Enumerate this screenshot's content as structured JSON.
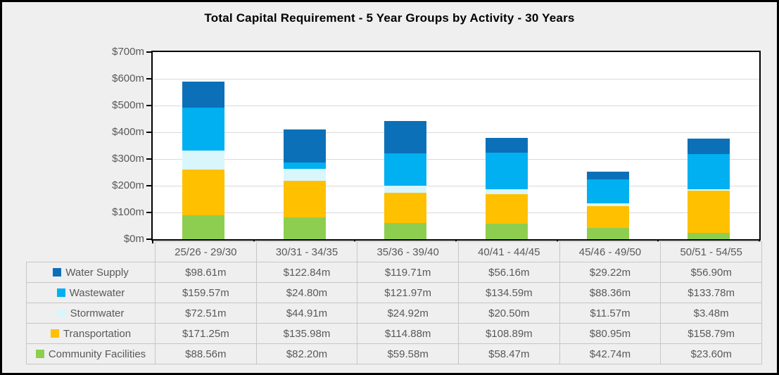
{
  "title": "Total Capital Requirement - 5 Year Groups by Activity - 30 Years",
  "colors": {
    "figure_background": "#efefef",
    "figure_border": "#000000",
    "plot_background": "#ffffff",
    "plot_border": "#000000",
    "gridline": "#d9d9d9",
    "axis_text": "#595959",
    "table_border": "#c6c6c6",
    "table_cell_background": "#efefef"
  },
  "chart_data": {
    "type": "bar",
    "stacked": true,
    "title": "Total Capital Requirement - 5 Year Groups by Activity - 30 Years",
    "categories": [
      "25/26 - 29/30",
      "30/31 - 34/35",
      "35/36 - 39/40",
      "40/41 - 44/45",
      "45/46 - 49/50",
      "50/51 - 54/55"
    ],
    "series": [
      {
        "name": "Water Supply",
        "color": "#0c70b8",
        "values": [
          98.61,
          122.84,
          119.71,
          56.16,
          29.22,
          56.9
        ]
      },
      {
        "name": "Wastewater",
        "color": "#00b0f0",
        "values": [
          159.57,
          24.8,
          121.97,
          134.59,
          88.36,
          133.78
        ]
      },
      {
        "name": "Stormwater",
        "color": "#d9f6fd",
        "values": [
          72.51,
          44.91,
          24.92,
          20.5,
          11.57,
          3.48
        ]
      },
      {
        "name": "Transportation",
        "color": "#ffc000",
        "values": [
          171.25,
          135.98,
          114.88,
          108.89,
          80.95,
          158.79
        ]
      },
      {
        "name": "Community Facilities",
        "color": "#8dce50",
        "values": [
          88.56,
          82.2,
          59.58,
          58.47,
          42.74,
          23.6
        ]
      }
    ],
    "stack_order_bottom_to_top": [
      "Community Facilities",
      "Transportation",
      "Stormwater",
      "Wastewater",
      "Water Supply"
    ],
    "ylim": [
      0,
      700
    ],
    "ytick_step": 100,
    "ytick_labels": [
      "$700m",
      "$600m",
      "$500m",
      "$400m",
      "$300m",
      "$200m",
      "$100m",
      "$0m"
    ],
    "value_unit": "$m",
    "xlabel": "",
    "ylabel": "",
    "grid": true,
    "legend_position": "data-table-left-column"
  },
  "table": {
    "header": [
      "25/26 - 29/30",
      "30/31 - 34/35",
      "35/36 - 39/40",
      "40/41 - 44/45",
      "45/46 - 49/50",
      "50/51 - 54/55"
    ],
    "rows": [
      {
        "label": "Water Supply",
        "swatch_color": "#0c70b8",
        "values": [
          "$98.61m",
          "$122.84m",
          "$119.71m",
          "$56.16m",
          "$29.22m",
          "$56.90m"
        ]
      },
      {
        "label": "Wastewater",
        "swatch_color": "#00b0f0",
        "values": [
          "$159.57m",
          "$24.80m",
          "$121.97m",
          "$134.59m",
          "$88.36m",
          "$133.78m"
        ]
      },
      {
        "label": "Stormwater",
        "swatch_color": "#d9f6fd",
        "values": [
          "$72.51m",
          "$44.91m",
          "$24.92m",
          "$20.50m",
          "$11.57m",
          "$3.48m"
        ]
      },
      {
        "label": "Transportation",
        "swatch_color": "#ffc000",
        "values": [
          "$171.25m",
          "$135.98m",
          "$114.88m",
          "$108.89m",
          "$80.95m",
          "$158.79m"
        ]
      },
      {
        "label": "Community Facilities",
        "swatch_color": "#8dce50",
        "values": [
          "$88.56m",
          "$82.20m",
          "$59.58m",
          "$58.47m",
          "$42.74m",
          "$23.60m"
        ]
      }
    ]
  }
}
